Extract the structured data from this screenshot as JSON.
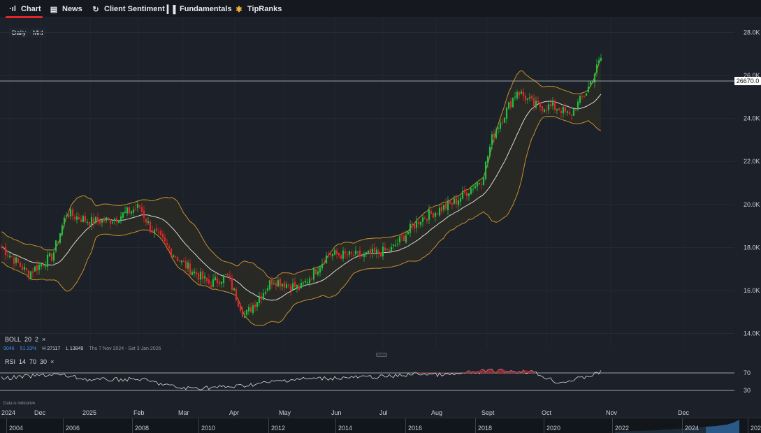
{
  "tabs": [
    {
      "label": "Chart",
      "icon": "chart-icon",
      "glyph": "·ıl",
      "active": true
    },
    {
      "label": "News",
      "icon": "news-icon",
      "glyph": "▤",
      "active": false
    },
    {
      "label": "Client Sentiment",
      "icon": "sentiment-icon",
      "glyph": "↻",
      "active": false
    },
    {
      "label": "Fundamentals",
      "icon": "fundamentals-icon",
      "glyph": "▎▌",
      "active": false
    },
    {
      "label": "TipRanks",
      "icon": "tipranks-icon",
      "glyph": "✱",
      "active": false
    }
  ],
  "periods": {
    "interval": "Daily",
    "price_type": "Mid"
  },
  "current_price": "26670.0",
  "price_axis": [
    "28.0K",
    "26.0K",
    "24.0K",
    "22.0K",
    "20.0K",
    "18.0K",
    "16.0K",
    "14.0K"
  ],
  "x_axis": [
    "2024",
    "Dec",
    "2025",
    "Feb",
    "Mar",
    "Apr",
    "May",
    "Jun",
    "Jul",
    "Aug",
    "Sept",
    "Oct",
    "Nov",
    "Dec"
  ],
  "boll": {
    "name": "BOLL",
    "period": "20",
    "mult": "2",
    "close_x": "×"
  },
  "boll_values": {
    "value": "9046",
    "change": "51.33%",
    "high": "H 27117",
    "low": "L 13849",
    "range": "Thu 7 Nov 2024 - Sat 3 Jan 2026"
  },
  "rsi": {
    "name": "RSI",
    "period": "14",
    "upper": "70",
    "lower": "30",
    "close_x": "×"
  },
  "rsi_axis": [
    "70",
    "30"
  ],
  "delay_note": "Data is indicative",
  "timeline_years": [
    "2004",
    "2006",
    "2008",
    "2010",
    "2012",
    "2014",
    "2016",
    "2018",
    "2020",
    "2022",
    "2024",
    "202"
  ],
  "chart_data": {
    "type": "candlestick",
    "interval": "Daily",
    "indicator": "Bollinger Bands (20, 2) with RSI (14, 70, 30)",
    "x": [
      "Nov",
      "Dec",
      "2025",
      "Feb",
      "Mar",
      "Apr",
      "May",
      "Jun",
      "Jul",
      "Aug",
      "Sept",
      "Oct",
      "Nov"
    ],
    "close": [
      17900,
      17300,
      19300,
      19600,
      17500,
      15200,
      16800,
      17300,
      17700,
      19900,
      25300,
      24200,
      26670
    ],
    "ylim": [
      13500,
      28600
    ],
    "last_price": 26670.0,
    "high": 27117,
    "low": 13849,
    "rsi_levels": [
      70,
      30
    ],
    "colors": {
      "up": "#1fbf3f",
      "down": "#e0262b",
      "band": "#c8902a",
      "middle": "#d8d8d8",
      "background": "#1b2029"
    }
  }
}
